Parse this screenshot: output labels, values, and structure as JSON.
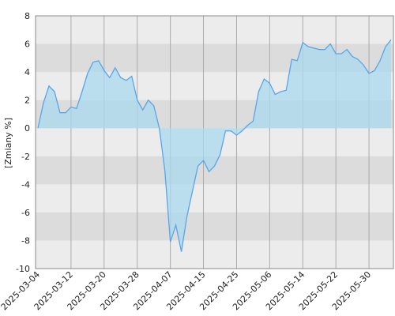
{
  "chart_data": {
    "type": "area",
    "y_label": "[Zmiany %]",
    "categories": [
      "2025-03-04",
      null,
      null,
      null,
      null,
      null,
      "2025-03-12",
      null,
      null,
      null,
      null,
      null,
      "2025-03-20",
      null,
      null,
      null,
      null,
      null,
      "2025-03-28",
      null,
      null,
      null,
      null,
      null,
      "2025-04-07",
      null,
      null,
      null,
      null,
      null,
      "2025-04-15",
      null,
      null,
      null,
      null,
      null,
      "2025-04-25",
      null,
      null,
      null,
      null,
      null,
      "2025-05-06",
      null,
      null,
      null,
      null,
      null,
      "2025-05-14",
      null,
      null,
      null,
      null,
      null,
      "2025-05-22",
      null,
      null,
      null,
      null,
      null,
      "2025-05-30",
      null,
      null,
      null,
      null
    ],
    "values": [
      0,
      1.8,
      3.0,
      2.6,
      1.1,
      1.1,
      1.5,
      1.4,
      2.6,
      3.9,
      4.7,
      4.8,
      4.1,
      3.6,
      4.3,
      3.6,
      3.4,
      3.7,
      2.0,
      1.3,
      2.0,
      1.6,
      0.0,
      -3.0,
      -8.1,
      -6.9,
      -8.8,
      -6.3,
      -4.5,
      -2.7,
      -2.3,
      -3.1,
      -2.7,
      -1.9,
      -0.2,
      -0.2,
      -0.5,
      -0.2,
      0.2,
      0.5,
      2.6,
      3.5,
      3.2,
      2.4,
      2.6,
      2.7,
      4.9,
      4.8,
      6.1,
      5.8,
      5.7,
      5.6,
      5.6,
      6.0,
      5.3,
      5.3,
      5.6,
      5.1,
      4.9,
      4.5,
      3.9,
      4.1,
      4.8,
      5.8,
      6.3
    ],
    "ylim": [
      -10,
      8
    ],
    "yticks": [
      -10,
      -8,
      -6,
      -4,
      -2,
      0,
      2,
      4,
      6,
      8
    ],
    "line_color": "#5aa5e6",
    "fill_color": "#a9d9ef",
    "grid": true
  }
}
